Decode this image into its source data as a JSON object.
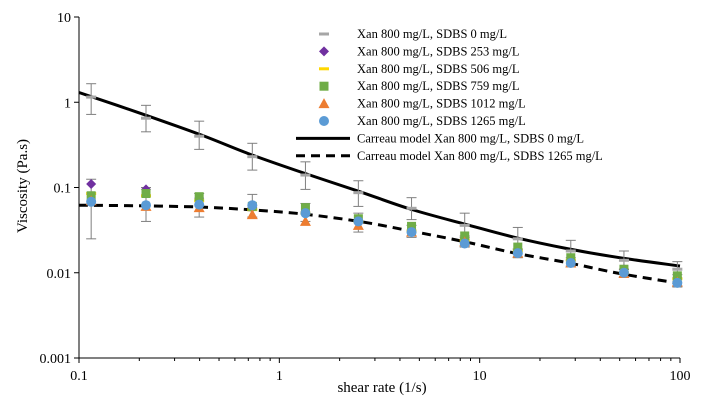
{
  "chart_data": {
    "type": "scatter",
    "title": "",
    "xlabel": "shear rate (1/s)",
    "ylabel": "Viscosity (Pa.s)",
    "x_scale": "log",
    "y_scale": "log",
    "xlim": [
      0.1,
      100
    ],
    "ylim": [
      0.001,
      10
    ],
    "x_ticks": [
      0.1,
      1,
      10,
      100
    ],
    "x_tick_labels": [
      "0.1",
      "1",
      "10",
      "100"
    ],
    "y_ticks": [
      0.001,
      0.01,
      0.1,
      1,
      10
    ],
    "y_tick_labels": [
      "0.001",
      "0.01",
      "0.1",
      "1",
      "10"
    ],
    "grid": false,
    "legend_position": "top-right",
    "x": [
      0.115,
      0.216,
      0.398,
      0.733,
      1.35,
      2.48,
      4.57,
      8.42,
      15.5,
      28.5,
      52.5,
      97
    ],
    "series": [
      {
        "name": "Xan 800 mg/L, SDBS 0 mg/L",
        "marker": "dash",
        "color": "#a6a6a6",
        "values": [
          1.15,
          0.65,
          0.4,
          0.23,
          0.14,
          0.087,
          0.057,
          0.036,
          0.025,
          0.018,
          0.014,
          0.011
        ],
        "error_low": [
          0.72,
          0.45,
          0.28,
          0.16,
          0.095,
          0.06,
          0.042,
          0.027,
          0.019,
          0.014,
          0.011,
          0.0095
        ],
        "error_high": [
          1.65,
          0.92,
          0.6,
          0.33,
          0.2,
          0.12,
          0.076,
          0.05,
          0.034,
          0.024,
          0.018,
          0.0135
        ]
      },
      {
        "name": "Xan 800 mg/L, SDBS 253 mg/L",
        "marker": "diamond",
        "color": "#7030a0",
        "values": [
          0.11,
          0.095,
          0.075,
          0.058,
          0.052,
          0.04,
          0.031,
          0.025,
          0.018,
          0.014,
          0.011,
          0.0088
        ]
      },
      {
        "name": "Xan 800 mg/L, SDBS 506 mg/L",
        "marker": "dash",
        "color": "#ffd700",
        "values": [
          0.085,
          0.08,
          0.07,
          0.055,
          0.05,
          0.04,
          0.031,
          0.024,
          0.018,
          0.014,
          0.01,
          0.0085
        ]
      },
      {
        "name": "Xan 800 mg/L, SDBS 759 mg/L",
        "marker": "square",
        "color": "#70ad47",
        "values": [
          0.08,
          0.085,
          0.078,
          0.06,
          0.058,
          0.043,
          0.035,
          0.027,
          0.02,
          0.015,
          0.011,
          0.0092
        ]
      },
      {
        "name": "Xan 800 mg/L, SDBS 1012 mg/L",
        "marker": "triangle",
        "color": "#ed7d31",
        "values": [
          0.07,
          0.06,
          0.058,
          0.048,
          0.04,
          0.036,
          0.03,
          0.023,
          0.017,
          0.013,
          0.0098,
          0.0078
        ]
      },
      {
        "name": "Xan 800 mg/L, SDBS 1265 mg/L",
        "marker": "circle",
        "color": "#5b9bd5",
        "values": [
          0.068,
          0.062,
          0.063,
          0.062,
          0.05,
          0.04,
          0.03,
          0.022,
          0.017,
          0.013,
          0.01,
          0.0076
        ],
        "error_low": [
          0.025,
          0.04,
          0.045,
          0.045,
          0.04,
          0.03,
          0.026,
          0.02,
          0.015,
          0.012,
          0.009,
          0.0068
        ],
        "error_high": [
          0.125,
          0.1,
          0.085,
          0.083,
          0.065,
          0.05,
          0.036,
          0.026,
          0.019,
          0.015,
          0.011,
          0.0085
        ]
      }
    ],
    "models": [
      {
        "name": "Carreau model Xan 800 mg/L, SDBS 0 mg/L",
        "style": "solid",
        "color": "#000000",
        "x": [
          0.1,
          0.2,
          0.4,
          0.7,
          1.3,
          2.5,
          4.5,
          8.5,
          15,
          28,
          50,
          100
        ],
        "y": [
          1.3,
          0.75,
          0.42,
          0.25,
          0.15,
          0.09,
          0.056,
          0.037,
          0.026,
          0.019,
          0.015,
          0.012
        ]
      },
      {
        "name": "Carreau model Xan 800 mg/L, SDBS 1265 mg/L",
        "style": "dashed",
        "color": "#000000",
        "x": [
          0.1,
          0.2,
          0.4,
          0.7,
          1.3,
          2.5,
          4.5,
          8.5,
          15,
          28,
          50,
          100
        ],
        "y": [
          0.062,
          0.061,
          0.059,
          0.055,
          0.049,
          0.04,
          0.031,
          0.023,
          0.017,
          0.013,
          0.0098,
          0.0075
        ]
      }
    ]
  }
}
